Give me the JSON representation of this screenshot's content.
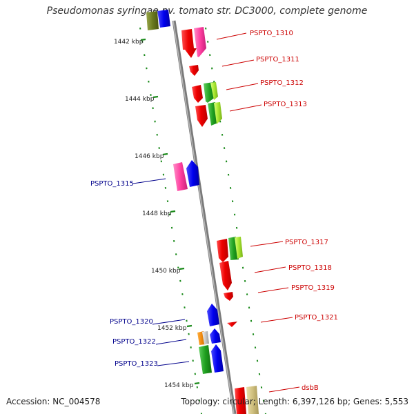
{
  "title": "Pseudomonas syringae pv. tomato str. DC3000, complete genome",
  "footer": {
    "accession": "Accession: NC_004578",
    "summary": "Topology: circular; Length: 6,397,126 bp; Genes: 5,553"
  },
  "colors": {
    "backbone": "#8a8a8a",
    "tick": "#1a8a1a",
    "forward_label": "#cc0000",
    "reverse_label": "#00008b"
  },
  "kbp_labels": [
    "1442 kbp",
    "1444 kbp",
    "1446 kbp",
    "1448 kbp",
    "1450 kbp",
    "1452 kbp",
    "1454 kbp"
  ],
  "gene_labels": {
    "forward": [
      "PSPTO_1310",
      "PSPTO_1311",
      "PSPTO_1312",
      "PSPTO_1313",
      "PSPTO_1317",
      "PSPTO_1318",
      "PSPTO_1319",
      "PSPTO_1321",
      "dsbB"
    ],
    "reverse": [
      "PSPTO_1315",
      "PSPTO_1320",
      "PSPTO_1322",
      "PSPTO_1323"
    ]
  }
}
